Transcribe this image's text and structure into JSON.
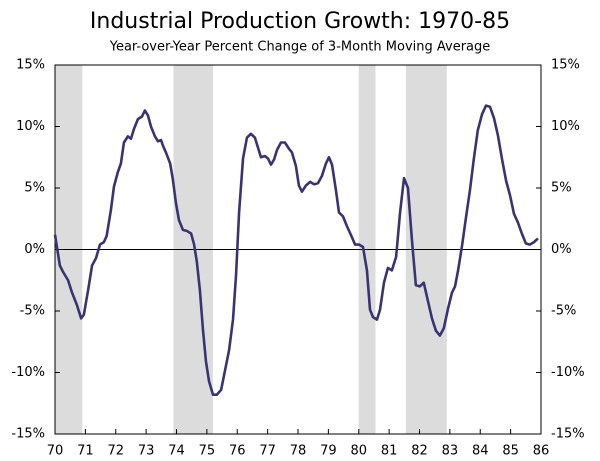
{
  "chart_data": {
    "type": "line",
    "title": "Industrial Production Growth: 1970-85",
    "subtitle": "Year-over-Year Percent Change of 3-Month Moving Average",
    "color": "#3a3372",
    "shade_color": "#dcdcdc",
    "shaded_periods": [
      [
        70,
        70.9
      ],
      [
        73.9,
        75.2
      ],
      [
        80,
        80.55
      ],
      [
        81.55,
        82.9
      ]
    ],
    "x": [
      70.0,
      70.16,
      70.26,
      70.43,
      70.56,
      70.72,
      70.86,
      70.95,
      71.09,
      71.22,
      71.35,
      71.48,
      71.61,
      71.7,
      71.84,
      71.94,
      72.07,
      72.17,
      72.27,
      72.4,
      72.5,
      72.6,
      72.73,
      72.86,
      72.96,
      73.06,
      73.16,
      73.29,
      73.39,
      73.49,
      73.56,
      73.65,
      73.79,
      73.88,
      73.98,
      74.08,
      74.21,
      74.35,
      74.48,
      74.58,
      74.67,
      74.77,
      74.87,
      74.97,
      75.07,
      75.2,
      75.33,
      75.47,
      75.6,
      75.73,
      75.86,
      75.96,
      76.06,
      76.19,
      76.32,
      76.45,
      76.58,
      76.68,
      76.78,
      76.91,
      77.01,
      77.11,
      77.21,
      77.31,
      77.44,
      77.57,
      77.7,
      77.8,
      77.93,
      78.03,
      78.13,
      78.26,
      78.4,
      78.53,
      78.66,
      78.79,
      78.92,
      79.02,
      79.12,
      79.25,
      79.35,
      79.48,
      79.61,
      79.74,
      79.88,
      80.01,
      80.14,
      80.27,
      80.37,
      80.47,
      80.6,
      80.7,
      80.83,
      80.96,
      81.09,
      81.23,
      81.36,
      81.49,
      81.62,
      81.75,
      81.88,
      82.01,
      82.14,
      82.27,
      82.41,
      82.54,
      82.67,
      82.8,
      82.94,
      83.07,
      83.17,
      83.27,
      83.4,
      83.53,
      83.66,
      83.79,
      83.92,
      84.06,
      84.19,
      84.32,
      84.45,
      84.58,
      84.72,
      84.85,
      84.98,
      85.11,
      85.24,
      85.37,
      85.5,
      85.63,
      85.77,
      85.9
    ],
    "values": [
      1.2,
      -1.3,
      -1.8,
      -2.5,
      -3.5,
      -4.5,
      -5.6,
      -5.3,
      -3.3,
      -1.3,
      -0.7,
      0.4,
      0.6,
      1.1,
      3.2,
      5.1,
      6.3,
      7.0,
      8.7,
      9.2,
      9.0,
      9.8,
      10.6,
      10.8,
      11.3,
      10.9,
      10.0,
      9.2,
      8.8,
      8.9,
      8.4,
      7.9,
      7.0,
      5.7,
      3.8,
      2.4,
      1.6,
      1.5,
      1.3,
      0.4,
      -1.0,
      -3.3,
      -6.5,
      -9.1,
      -10.7,
      -11.8,
      -11.8,
      -11.4,
      -9.8,
      -8.2,
      -5.7,
      -2.1,
      3.0,
      7.4,
      9.1,
      9.4,
      9.1,
      8.3,
      7.5,
      7.6,
      7.4,
      6.9,
      7.3,
      8.1,
      8.7,
      8.7,
      8.2,
      7.9,
      6.8,
      5.2,
      4.7,
      5.2,
      5.5,
      5.3,
      5.4,
      6.0,
      7.0,
      7.5,
      6.9,
      4.8,
      3.0,
      2.7,
      1.9,
      1.2,
      0.4,
      0.4,
      0.2,
      -1.7,
      -4.9,
      -5.5,
      -5.7,
      -4.9,
      -2.7,
      -1.5,
      -1.7,
      -0.6,
      3.0,
      5.8,
      5.0,
      0.8,
      -2.9,
      -3.0,
      -2.7,
      -4.1,
      -5.6,
      -6.6,
      -7.0,
      -6.4,
      -4.8,
      -3.5,
      -3.0,
      -1.7,
      0.3,
      2.6,
      4.8,
      7.4,
      9.7,
      11.0,
      11.7,
      11.6,
      10.7,
      9.3,
      7.3,
      5.6,
      4.4,
      2.9,
      2.2,
      1.3,
      0.5,
      0.4,
      0.6,
      0.9
    ],
    "xlim": [
      70,
      86
    ],
    "xticks": [
      70,
      71,
      72,
      73,
      74,
      75,
      76,
      77,
      78,
      79,
      80,
      81,
      82,
      83,
      84,
      85,
      86
    ],
    "ylim": [
      -15,
      15
    ],
    "yticks": [
      {
        "value": -15,
        "label": "-15%"
      },
      {
        "value": -10,
        "label": "-10%"
      },
      {
        "value": -5,
        "label": "-5%"
      },
      {
        "value": 0,
        "label": "0%"
      },
      {
        "value": 5,
        "label": "5%"
      },
      {
        "value": 10,
        "label": "10%"
      },
      {
        "value": 15,
        "label": "15%"
      }
    ],
    "y2lim": [
      -15,
      15
    ],
    "y2ticks": [
      {
        "value": -15,
        "label": "-15%"
      },
      {
        "value": -10,
        "label": "-10%"
      },
      {
        "value": -5,
        "label": "-5%"
      },
      {
        "value": 0,
        "label": "0%"
      },
      {
        "value": 5,
        "label": "5%"
      },
      {
        "value": 10,
        "label": "10%"
      },
      {
        "value": 15,
        "label": "15%"
      }
    ]
  }
}
